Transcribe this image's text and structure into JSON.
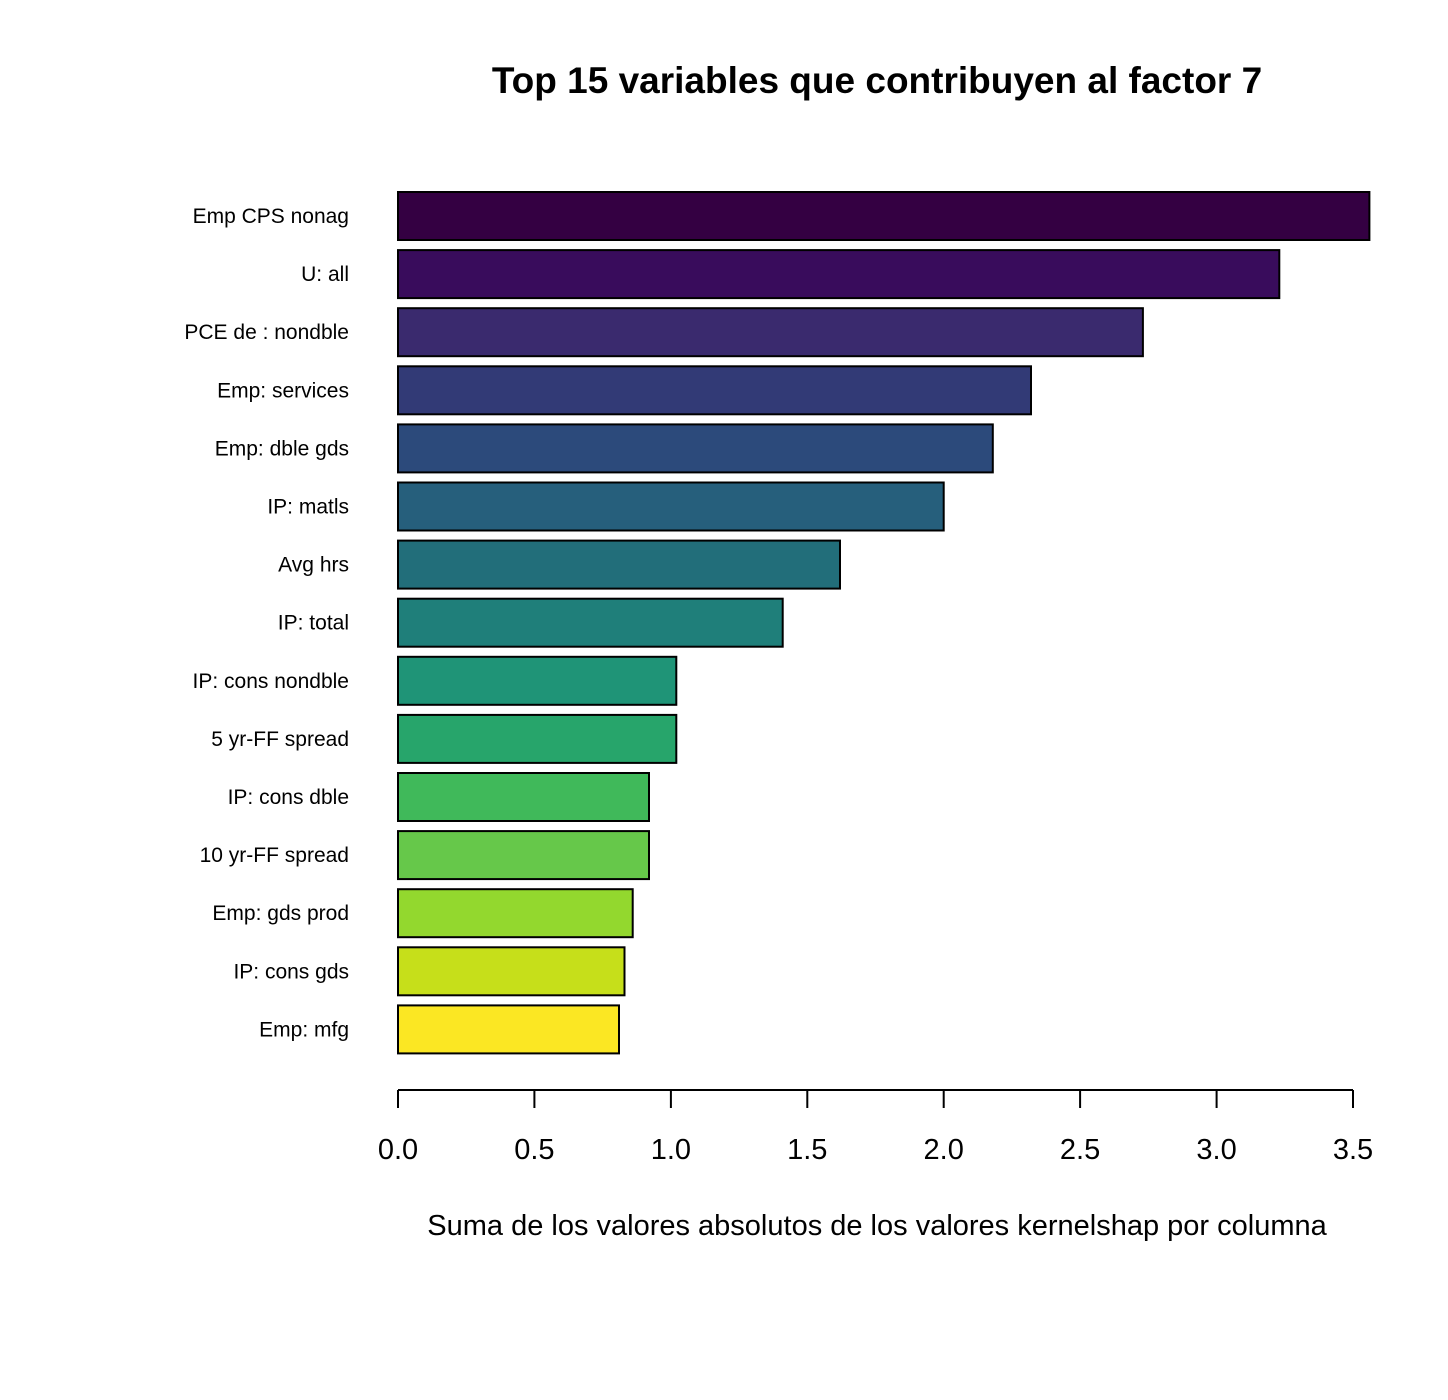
{
  "chart_data": {
    "type": "bar",
    "orientation": "horizontal",
    "title": "Top 15 variables que contribuyen al factor 7",
    "xlabel": "Suma de los valores absolutos de los valores kernelshap por columna",
    "ylabel": "",
    "xlim": [
      0,
      3.5
    ],
    "xticks": [
      "0.0",
      "0.5",
      "1.0",
      "1.5",
      "2.0",
      "2.5",
      "3.0",
      "3.5"
    ],
    "grid": false,
    "categories": [
      "Emp CPS nonag",
      "U: all",
      "PCE de : nondble",
      "Emp: services",
      "Emp: dble gds",
      "IP: matls",
      "Avg hrs",
      "IP: total",
      "IP: cons nondble",
      "5 yr-FF spread",
      "IP: cons dble",
      "10 yr-FF spread",
      "Emp: gds prod",
      "IP: cons gds",
      "Emp: mfg"
    ],
    "values": [
      3.56,
      3.23,
      2.73,
      2.32,
      2.18,
      2.0,
      1.62,
      1.41,
      1.02,
      1.02,
      0.92,
      0.92,
      0.86,
      0.83,
      0.81
    ],
    "colors": [
      "#340042",
      "#390c5c",
      "#3a2a6e",
      "#323a76",
      "#2c4a7b",
      "#265f7c",
      "#226e7a",
      "#1f7f7a",
      "#1f9477",
      "#27a56b",
      "#40b95a",
      "#66c84a",
      "#93d82e",
      "#c6df1a",
      "#fbe723"
    ]
  }
}
